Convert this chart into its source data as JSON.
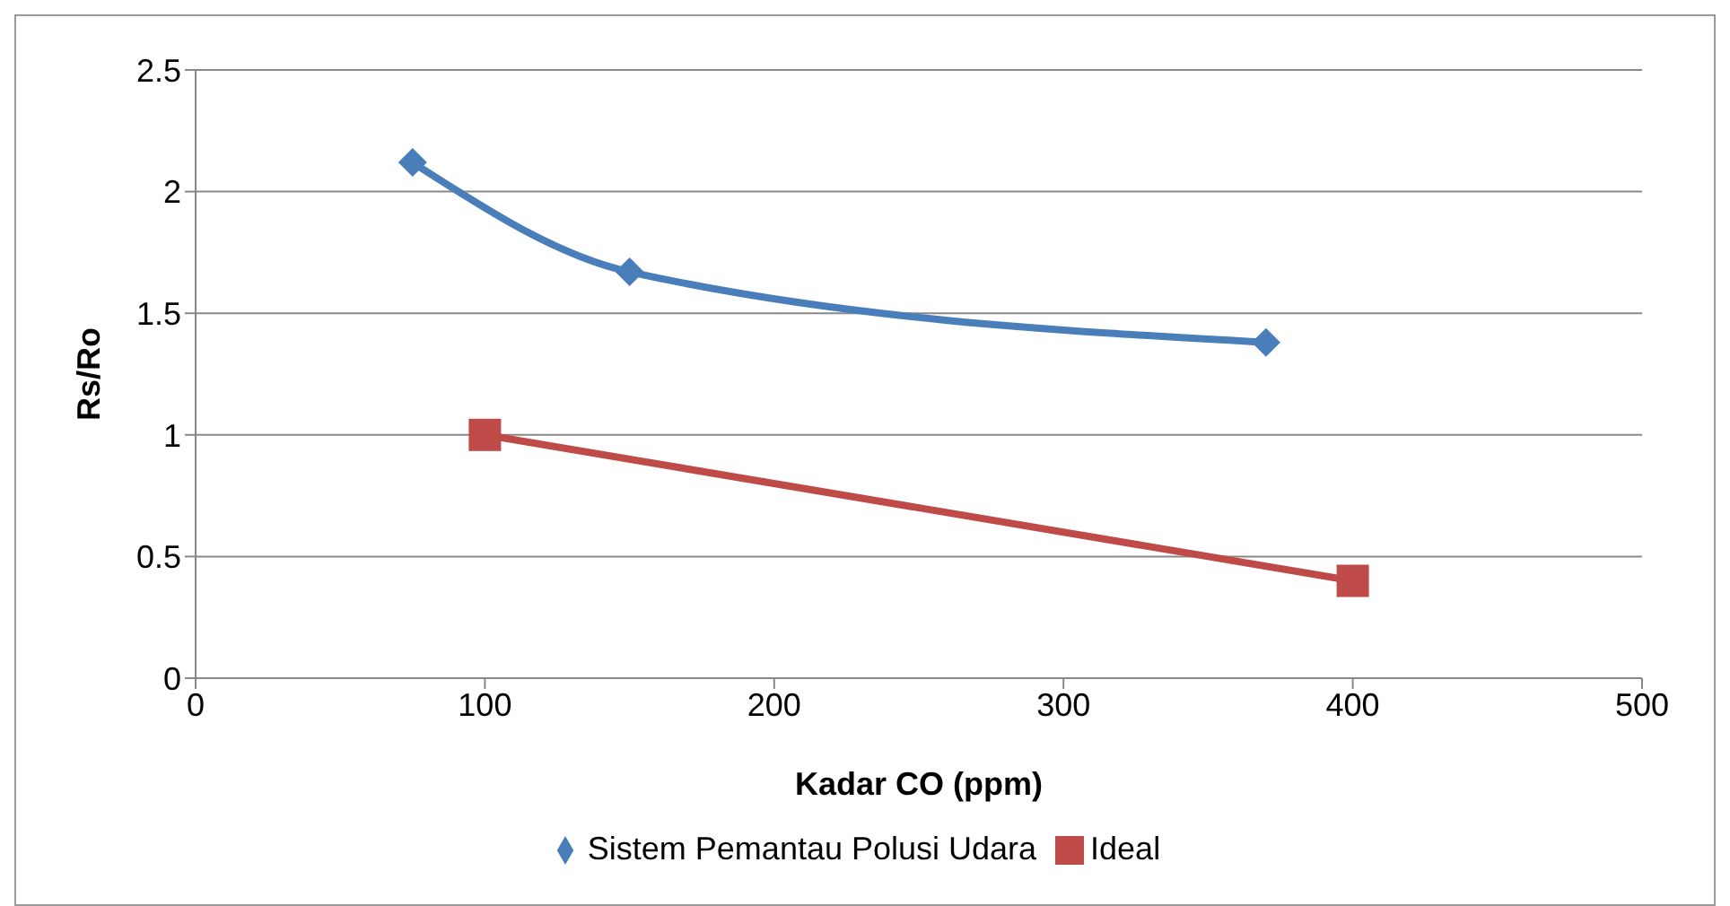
{
  "chart_data": {
    "type": "line",
    "xlabel": "Kadar CO (ppm)",
    "ylabel": "Rs/Ro",
    "xlim": [
      0,
      500
    ],
    "xticks": [
      0,
      100,
      200,
      300,
      400,
      500
    ],
    "ylim": [
      0,
      2.5
    ],
    "yticks": [
      0,
      0.5,
      1,
      1.5,
      2,
      2.5
    ],
    "grid": "y",
    "legend": "bottom",
    "series": [
      {
        "name": "Sistem Pemantau Polusi Udara",
        "color": "#4a7ebb",
        "x": [
          75,
          150,
          370
        ],
        "values": [
          2.12,
          1.67,
          1.38
        ],
        "marker": "diamond"
      },
      {
        "name": "Ideal",
        "color": "#be4b48",
        "x": [
          100,
          400
        ],
        "values": [
          1,
          0.4
        ],
        "marker": "square"
      }
    ]
  }
}
